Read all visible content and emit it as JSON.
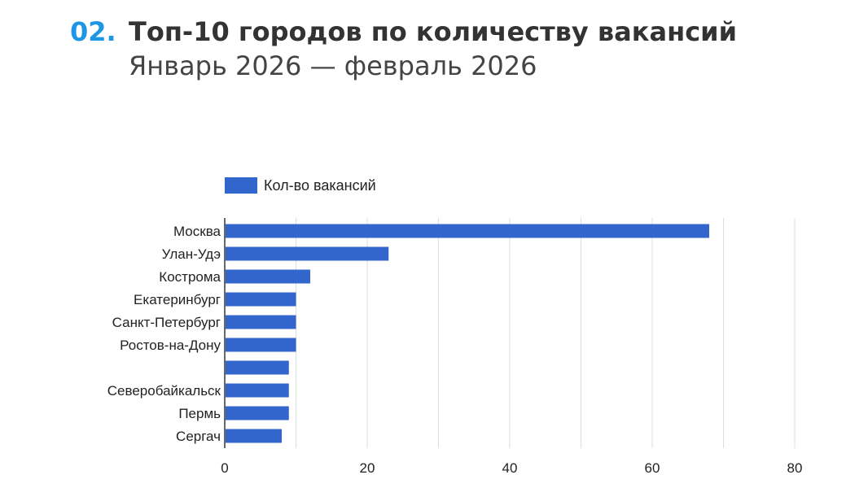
{
  "header": {
    "number": "02.",
    "title": "Топ-10 городов по количеству вакансий",
    "subtitle": "Январь 2026 — февраль 2026"
  },
  "colors": {
    "accent": "#1e96e6",
    "bar": "#3366cc",
    "grid": "#dddddd"
  },
  "chart_data": {
    "type": "bar",
    "orientation": "horizontal",
    "categories": [
      "Москва",
      "Улан-Удэ",
      "Кострома",
      "Екатеринбург",
      "Санкт-Петербург",
      "Ростов-на-Дону",
      "",
      "Северобайкальск",
      "Пермь",
      "Сергач"
    ],
    "series": [
      {
        "name": "Кол-во вакансий",
        "values": [
          68,
          23,
          12,
          10,
          10,
          10,
          9,
          9,
          9,
          8
        ]
      }
    ],
    "xlim": [
      0,
      80
    ],
    "xticks": [
      0,
      20,
      40,
      60,
      80
    ],
    "grid": true,
    "legend_position": "top-left"
  }
}
